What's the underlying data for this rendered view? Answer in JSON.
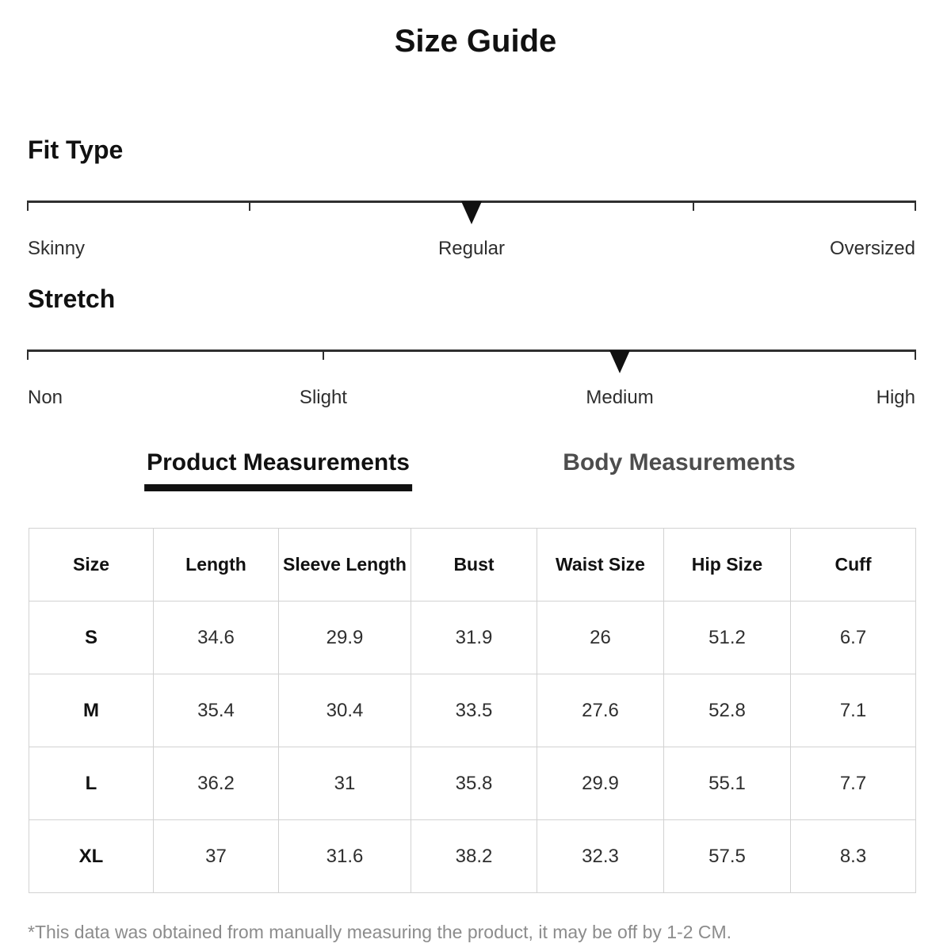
{
  "title": "Size Guide",
  "colors": {
    "scale_line": "#2f2f2f",
    "marker": "#111111",
    "table_border": "#d2d2d2",
    "active_tab": "#111111",
    "inactive_tab": "#4d4d4d",
    "footnote_text": "#8c8c8c"
  },
  "sliders": [
    {
      "label": "Fit Type",
      "marker_pct": 50,
      "ticks_pct": [
        0,
        25,
        50,
        75,
        100
      ],
      "labels": [
        {
          "text": "Skinny",
          "pct": 0,
          "align": "left"
        },
        {
          "text": "Regular",
          "pct": 50,
          "align": "center"
        },
        {
          "text": "Oversized",
          "pct": 100,
          "align": "right"
        }
      ]
    },
    {
      "label": "Stretch",
      "marker_pct": 66.7,
      "ticks_pct": [
        0,
        33.3,
        66.7,
        100
      ],
      "labels": [
        {
          "text": "Non",
          "pct": 0,
          "align": "left"
        },
        {
          "text": "Slight",
          "pct": 33.3,
          "align": "center"
        },
        {
          "text": "Medium",
          "pct": 66.7,
          "align": "center"
        },
        {
          "text": "High",
          "pct": 100,
          "align": "right"
        }
      ]
    }
  ],
  "tabs": [
    {
      "label": "Product Measurements",
      "active": true
    },
    {
      "label": "Body Measurements",
      "active": false
    }
  ],
  "measurement_table": {
    "headers": [
      "Size",
      "Length",
      "Sleeve Length",
      "Bust",
      "Waist Size",
      "Hip Size",
      "Cuff"
    ],
    "rows": [
      [
        "S",
        "34.6",
        "29.9",
        "31.9",
        "26",
        "51.2",
        "6.7"
      ],
      [
        "M",
        "35.4",
        "30.4",
        "33.5",
        "27.6",
        "52.8",
        "7.1"
      ],
      [
        "L",
        "36.2",
        "31",
        "35.8",
        "29.9",
        "55.1",
        "7.7"
      ],
      [
        "XL",
        "37",
        "31.6",
        "38.2",
        "32.3",
        "57.5",
        "8.3"
      ]
    ]
  },
  "footnote": "*This data was obtained from manually measuring the product, it may be off by 1-2 CM."
}
